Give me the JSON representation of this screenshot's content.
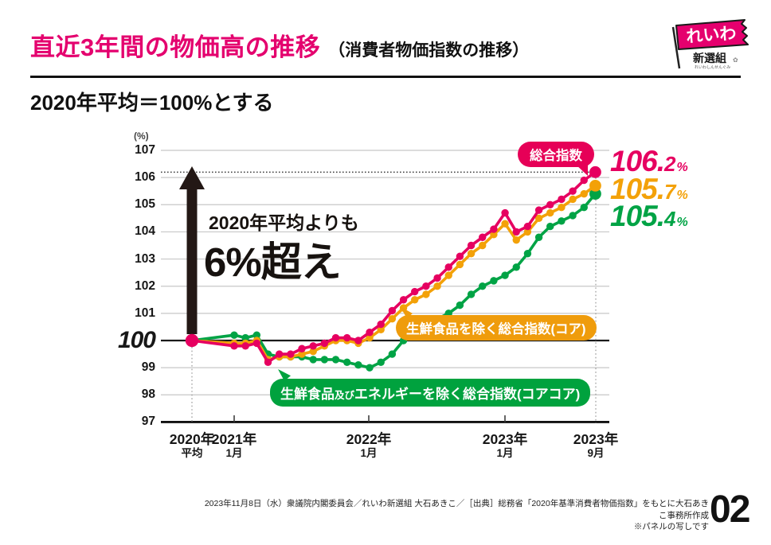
{
  "header": {
    "title": "直近3年間の物価高の推移",
    "title_sub": "（消費者物価指数の推移）",
    "title_color": "#e4006e",
    "logo": {
      "flag_text": "れいわ",
      "org_text": "新選組",
      "crest": "✿",
      "org_reading": "れいわしんせんぐみ"
    }
  },
  "subtitle": "2020年平均＝100%とする",
  "annotation": {
    "line1": "2020年平均よりも",
    "line2": "6%超え"
  },
  "colors": {
    "pink": "#e60060",
    "orange": "#f3a108",
    "green": "#00a345",
    "ink": "#1a1a1a"
  },
  "chart_data": {
    "type": "line",
    "unit_label": "(%)",
    "ylim": [
      97,
      107
    ],
    "y_ticks": [
      107,
      106,
      105,
      104,
      103,
      102,
      101,
      100,
      99,
      98,
      97
    ],
    "baseline_value": 100,
    "highlight_value": 106.2,
    "grid": true,
    "legend_position": "inline-badges",
    "percent_suffix": "%",
    "x_axis_labels": [
      {
        "year": "2020年",
        "sub": "平均"
      },
      {
        "year": "2021年",
        "sub": "1月"
      },
      {
        "year": "2022年",
        "sub": "1月"
      },
      {
        "year": "2023年",
        "sub": "1月"
      },
      {
        "year": "2023年",
        "sub": "9月"
      }
    ],
    "categories": [
      "2020年平均",
      "2021-01",
      "2021-02",
      "2021-03",
      "2021-04",
      "2021-05",
      "2021-06",
      "2021-07",
      "2021-08",
      "2021-09",
      "2021-10",
      "2021-11",
      "2021-12",
      "2022-01",
      "2022-02",
      "2022-03",
      "2022-04",
      "2022-05",
      "2022-06",
      "2022-07",
      "2022-08",
      "2022-09",
      "2022-10",
      "2022-11",
      "2022-12",
      "2023-01",
      "2023-02",
      "2023-03",
      "2023-04",
      "2023-05",
      "2023-06",
      "2023-07",
      "2023-08",
      "2023-09"
    ],
    "series": [
      {
        "name": "総合指数",
        "color": "#e60060",
        "final_value": "106.2",
        "values": [
          100.0,
          99.8,
          99.8,
          99.9,
          99.2,
          99.5,
          99.5,
          99.7,
          99.8,
          99.9,
          100.1,
          100.1,
          100.0,
          100.3,
          100.6,
          101.1,
          101.5,
          101.8,
          102.0,
          102.3,
          102.7,
          103.1,
          103.5,
          103.8,
          104.1,
          104.7,
          104.0,
          104.2,
          104.8,
          105.0,
          105.2,
          105.5,
          105.9,
          106.2
        ]
      },
      {
        "name": "生鮮食品を除く総合指数(コア)",
        "color": "#f3a108",
        "final_value": "105.7",
        "values": [
          100.0,
          99.9,
          99.9,
          100.0,
          99.3,
          99.4,
          99.4,
          99.5,
          99.6,
          99.8,
          100.0,
          100.0,
          99.9,
          100.1,
          100.4,
          100.8,
          101.2,
          101.5,
          101.7,
          102.0,
          102.4,
          102.8,
          103.2,
          103.5,
          103.9,
          104.3,
          103.7,
          104.0,
          104.5,
          104.7,
          104.9,
          105.2,
          105.4,
          105.7
        ]
      },
      {
        "name": "生鮮食品及びエネルギーを除く総合指数(コアコア)",
        "color": "#00a345",
        "final_value": "105.4",
        "values": [
          100.0,
          100.2,
          100.1,
          100.2,
          99.5,
          99.4,
          99.4,
          99.4,
          99.3,
          99.3,
          99.3,
          99.2,
          99.1,
          99.0,
          99.2,
          99.5,
          100.0,
          100.3,
          100.5,
          100.8,
          101.0,
          101.3,
          101.7,
          102.0,
          102.2,
          102.4,
          102.7,
          103.2,
          103.8,
          104.2,
          104.4,
          104.6,
          104.9,
          105.4
        ]
      }
    ]
  },
  "badges": {
    "pink": {
      "label": "総合指数"
    },
    "orange": {
      "label": "生鮮食品を除く総合指数(コア)"
    },
    "green": {
      "part1": "生鮮食品",
      "small": "及び",
      "part2": "エネルギーを除く総合指数(コアコア)"
    }
  },
  "footer": {
    "line1": "2023年11月8日（水）衆議院内閣委員会／れいわ新選組 大石あきこ／［出典］総務省「2020年基準消費者物価指数」をもとに大石あきこ事務所作成",
    "line2": "※パネルの写しです",
    "page_number": "02"
  }
}
